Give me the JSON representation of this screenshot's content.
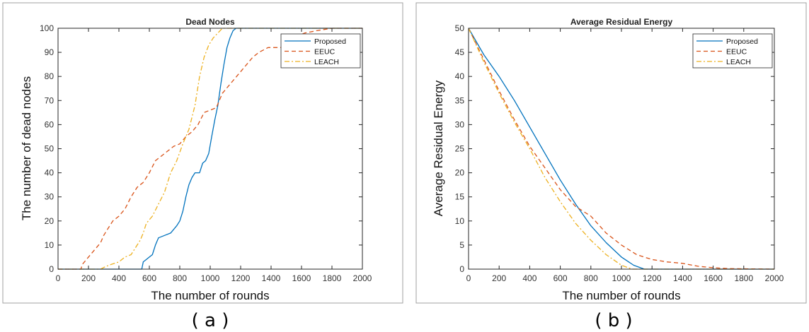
{
  "captions": [
    "( a )",
    "( b )"
  ],
  "chart_data": [
    {
      "type": "line",
      "title": "Dead Nodes",
      "xlabel": "The number of rounds",
      "ylabel": "The number of dead nodes",
      "xlim": [
        0,
        2000
      ],
      "ylim": [
        0,
        100
      ],
      "xticks": [
        0,
        200,
        400,
        600,
        800,
        1000,
        1200,
        1400,
        1600,
        1800,
        2000
      ],
      "yticks": [
        0,
        10,
        20,
        30,
        40,
        50,
        60,
        70,
        80,
        90,
        100
      ],
      "grid": false,
      "legend": "top-right",
      "series": [
        {
          "name": "Proposed",
          "color": "#0072BD",
          "dash": "solid",
          "points": [
            [
              0,
              0
            ],
            [
              550,
              0
            ],
            [
              560,
              3
            ],
            [
              580,
              4
            ],
            [
              600,
              5
            ],
            [
              620,
              6
            ],
            [
              640,
              10
            ],
            [
              660,
              13
            ],
            [
              700,
              14
            ],
            [
              740,
              15
            ],
            [
              780,
              18
            ],
            [
              800,
              20
            ],
            [
              820,
              24
            ],
            [
              840,
              30
            ],
            [
              860,
              35
            ],
            [
              880,
              38
            ],
            [
              900,
              40
            ],
            [
              930,
              40
            ],
            [
              950,
              44
            ],
            [
              970,
              45
            ],
            [
              990,
              48
            ],
            [
              1010,
              55
            ],
            [
              1030,
              62
            ],
            [
              1050,
              68
            ],
            [
              1070,
              77
            ],
            [
              1090,
              85
            ],
            [
              1110,
              92
            ],
            [
              1130,
              96
            ],
            [
              1150,
              99
            ],
            [
              1170,
              100
            ],
            [
              2000,
              100
            ]
          ]
        },
        {
          "name": "EEUC",
          "color": "#D95319",
          "dash": "6,4",
          "points": [
            [
              0,
              0
            ],
            [
              150,
              0
            ],
            [
              160,
              2
            ],
            [
              200,
              5
            ],
            [
              240,
              8
            ],
            [
              280,
              11
            ],
            [
              300,
              14
            ],
            [
              330,
              17
            ],
            [
              360,
              20
            ],
            [
              400,
              22
            ],
            [
              440,
              25
            ],
            [
              480,
              30
            ],
            [
              520,
              34
            ],
            [
              560,
              36
            ],
            [
              600,
              40
            ],
            [
              640,
              45
            ],
            [
              680,
              47
            ],
            [
              720,
              49
            ],
            [
              760,
              51
            ],
            [
              800,
              52
            ],
            [
              840,
              55
            ],
            [
              880,
              57
            ],
            [
              920,
              60
            ],
            [
              960,
              65
            ],
            [
              1000,
              66
            ],
            [
              1040,
              67
            ],
            [
              1080,
              73
            ],
            [
              1120,
              76
            ],
            [
              1160,
              79
            ],
            [
              1200,
              82
            ],
            [
              1240,
              85
            ],
            [
              1280,
              88
            ],
            [
              1320,
              90
            ],
            [
              1380,
              92
            ],
            [
              1500,
              92
            ],
            [
              1540,
              96
            ],
            [
              1620,
              98
            ],
            [
              1700,
              99
            ],
            [
              1800,
              100
            ],
            [
              2000,
              100
            ]
          ]
        },
        {
          "name": "LEACH",
          "color": "#EDB120",
          "dash": "7,3,2,3",
          "points": [
            [
              0,
              0
            ],
            [
              280,
              0
            ],
            [
              310,
              1
            ],
            [
              350,
              2
            ],
            [
              400,
              3
            ],
            [
              440,
              5
            ],
            [
              480,
              6
            ],
            [
              520,
              10
            ],
            [
              540,
              12
            ],
            [
              560,
              15
            ],
            [
              580,
              19
            ],
            [
              620,
              22
            ],
            [
              660,
              27
            ],
            [
              700,
              32
            ],
            [
              740,
              40
            ],
            [
              780,
              45
            ],
            [
              820,
              52
            ],
            [
              860,
              58
            ],
            [
              900,
              68
            ],
            [
              930,
              80
            ],
            [
              960,
              88
            ],
            [
              990,
              93
            ],
            [
              1020,
              96
            ],
            [
              1050,
              98
            ],
            [
              1080,
              100
            ],
            [
              2000,
              100
            ]
          ]
        }
      ]
    },
    {
      "type": "line",
      "title": "Average Residual Energy",
      "xlabel": "The number of rounds",
      "ylabel": "Average Residual Energy",
      "xlim": [
        0,
        2000
      ],
      "ylim": [
        0,
        50
      ],
      "xticks": [
        0,
        200,
        400,
        600,
        800,
        1000,
        1200,
        1400,
        1600,
        1800,
        2000
      ],
      "yticks": [
        0,
        5,
        10,
        15,
        20,
        25,
        30,
        35,
        40,
        45,
        50
      ],
      "grid": false,
      "legend": "top-right",
      "series": [
        {
          "name": "Proposed",
          "color": "#0072BD",
          "dash": "solid",
          "points": [
            [
              0,
              50
            ],
            [
              100,
              44.5
            ],
            [
              200,
              40
            ],
            [
              300,
              35
            ],
            [
              400,
              29.5
            ],
            [
              500,
              24
            ],
            [
              600,
              18.5
            ],
            [
              700,
              13.5
            ],
            [
              800,
              9
            ],
            [
              900,
              5.5
            ],
            [
              1000,
              2.5
            ],
            [
              1080,
              0.8
            ],
            [
              1150,
              0
            ],
            [
              2000,
              0
            ]
          ]
        },
        {
          "name": "EEUC",
          "color": "#D95319",
          "dash": "6,4",
          "points": [
            [
              0,
              50
            ],
            [
              100,
              43.5
            ],
            [
              200,
              37
            ],
            [
              300,
              31
            ],
            [
              400,
              25.5
            ],
            [
              500,
              21
            ],
            [
              600,
              16.5
            ],
            [
              700,
              13
            ],
            [
              800,
              11
            ],
            [
              900,
              7.5
            ],
            [
              1000,
              5
            ],
            [
              1100,
              3
            ],
            [
              1200,
              2
            ],
            [
              1300,
              1.5
            ],
            [
              1400,
              1.2
            ],
            [
              1500,
              0.6
            ],
            [
              1600,
              0.3
            ],
            [
              1700,
              0.1
            ],
            [
              2000,
              0
            ]
          ]
        },
        {
          "name": "LEACH",
          "color": "#EDB120",
          "dash": "7,3,2,3",
          "points": [
            [
              0,
              50
            ],
            [
              100,
              43
            ],
            [
              200,
              36.5
            ],
            [
              300,
              30.5
            ],
            [
              400,
              25
            ],
            [
              500,
              19
            ],
            [
              600,
              14
            ],
            [
              700,
              9.5
            ],
            [
              800,
              6
            ],
            [
              900,
              3
            ],
            [
              1000,
              0.8
            ],
            [
              1070,
              0
            ],
            [
              2000,
              0
            ]
          ]
        }
      ]
    }
  ]
}
